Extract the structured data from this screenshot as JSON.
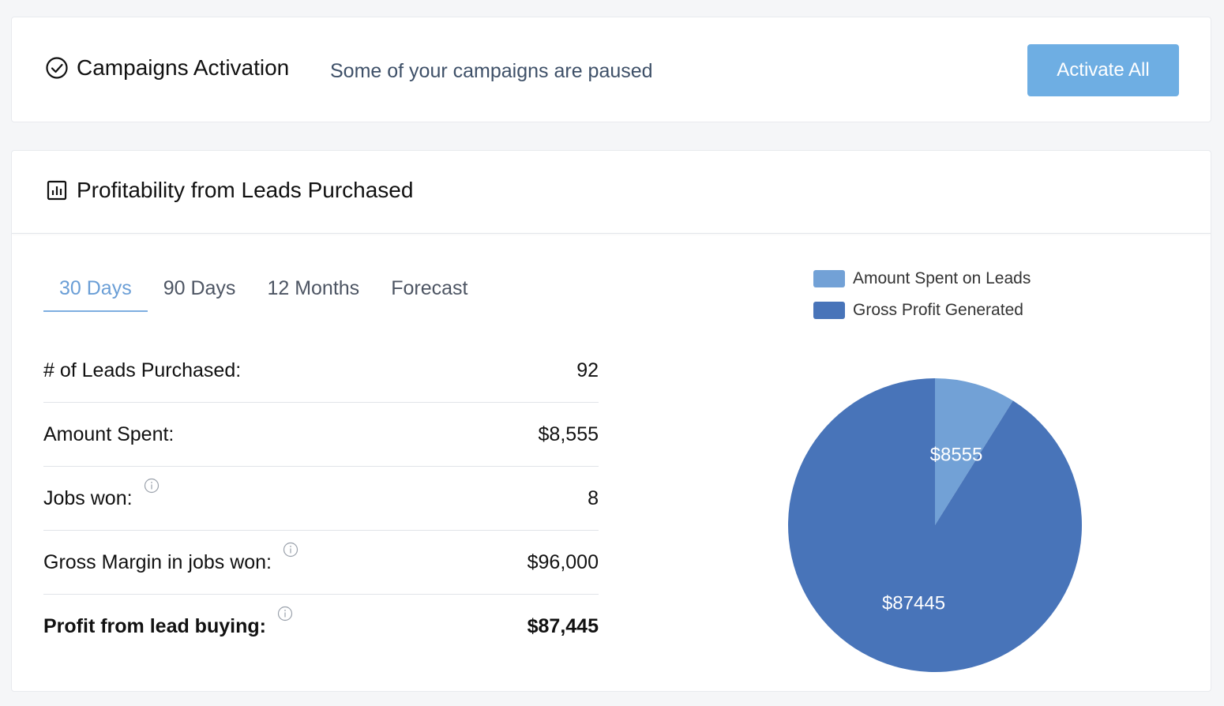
{
  "activation": {
    "title": "Campaigns Activation",
    "subtitle": "Some of your campaigns are paused",
    "button_label": "Activate All",
    "icon": "check-circle-icon"
  },
  "profitability": {
    "title": "Profitability from Leads Purchased",
    "icon": "bar-chart-icon",
    "tabs": [
      {
        "label": "30 Days",
        "active": true
      },
      {
        "label": "90 Days",
        "active": false
      },
      {
        "label": "12 Months",
        "active": false
      },
      {
        "label": "Forecast",
        "active": false
      }
    ],
    "stats": [
      {
        "label": "# of Leads Purchased:",
        "value": "92",
        "info": false,
        "bold": false
      },
      {
        "label": "Amount Spent:",
        "value": "$8,555",
        "info": false,
        "bold": false
      },
      {
        "label": "Jobs won:",
        "value": "8",
        "info": true,
        "bold": false
      },
      {
        "label": "Gross Margin in jobs won:",
        "value": "$96,000",
        "info": true,
        "bold": false
      },
      {
        "label": "Profit from lead buying:",
        "value": "$87,445",
        "info": true,
        "bold": true
      }
    ]
  },
  "colors": {
    "accent": "#6eaee3",
    "spent": "#72a1d6",
    "profit": "#4874b9"
  },
  "chart_data": {
    "type": "pie",
    "categories": [
      "Amount Spent on Leads",
      "Gross Profit Generated"
    ],
    "values": [
      8555,
      87445
    ],
    "data_labels": [
      "$8555",
      "$87445"
    ],
    "colors": [
      "#72a1d6",
      "#4874b9"
    ],
    "legend": "top"
  }
}
